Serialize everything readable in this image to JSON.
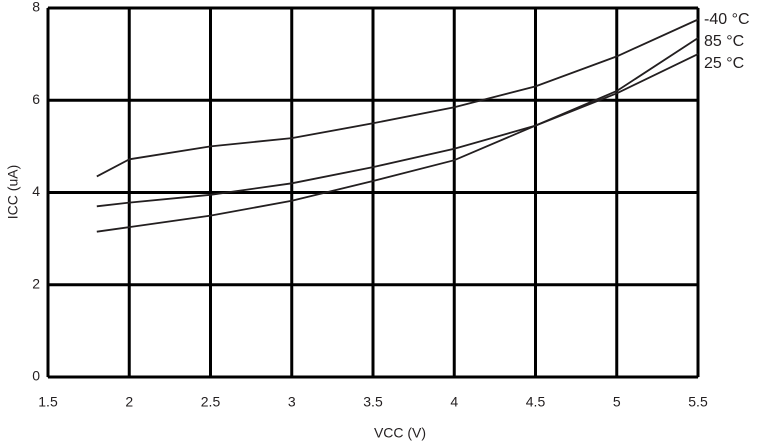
{
  "chart_data": {
    "type": "line",
    "x_label": "VCC (V)",
    "y_label": "ICC (uA)",
    "x": [
      1.8,
      2,
      2.5,
      3,
      3.5,
      4,
      4.5,
      5,
      5.5
    ],
    "series": [
      {
        "name": "-40 °C",
        "color": "#231f20",
        "values": [
          4.35,
          4.72,
          5.0,
          5.18,
          5.5,
          5.85,
          6.3,
          6.95,
          7.75
        ]
      },
      {
        "name": "85 °C",
        "color": "#231f20",
        "values": [
          3.15,
          3.25,
          3.5,
          3.82,
          4.25,
          4.7,
          5.45,
          6.2,
          7.35
        ]
      },
      {
        "name": "25 °C",
        "color": "#231f20",
        "values": [
          3.7,
          3.78,
          3.95,
          4.2,
          4.55,
          4.95,
          5.45,
          6.15,
          7.0
        ]
      }
    ],
    "xlim": [
      1.5,
      5.5
    ],
    "xticks": [
      1.5,
      2,
      2.5,
      3,
      3.5,
      4,
      4.5,
      5,
      5.5
    ],
    "ylim": [
      0,
      8
    ],
    "yticks": [
      0,
      2,
      4,
      6,
      8
    ],
    "grid": true
  }
}
